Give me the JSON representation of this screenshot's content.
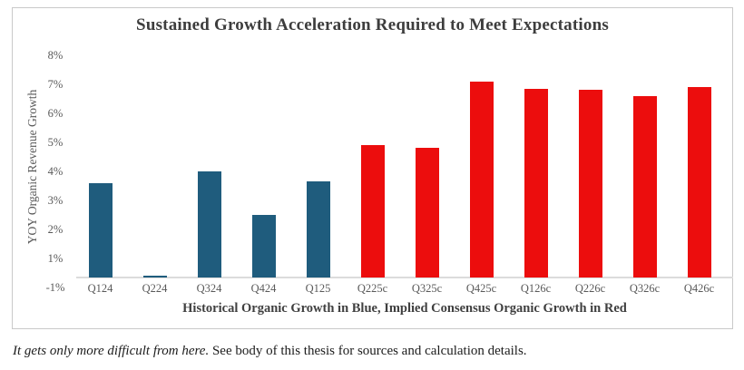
{
  "chart_data": {
    "type": "bar",
    "title": "Sustained Growth Acceleration Required to Meet Expectations",
    "ylabel": "YOY Organic Revenue Growth",
    "xlabel": "Historical Organic Growth in Blue, Implied Consensus Organic Growth in Red",
    "categories": [
      "Q124",
      "Q224",
      "Q324",
      "Q424",
      "Q125",
      "Q225c",
      "Q325c",
      "Q425c",
      "Q126c",
      "Q226c",
      "Q326c",
      "Q426c"
    ],
    "values": [
      3.6,
      0.1,
      4.0,
      2.5,
      3.65,
      4.9,
      4.8,
      7.1,
      6.85,
      6.8,
      6.6,
      6.9
    ],
    "bar_series": [
      "historical",
      "historical",
      "historical",
      "historical",
      "historical",
      "consensus",
      "consensus",
      "consensus",
      "consensus",
      "consensus",
      "consensus",
      "consensus"
    ],
    "series": [
      {
        "name": "Historical Organic Growth",
        "key": "historical",
        "color": "#1f5c7d"
      },
      {
        "name": "Implied Consensus Organic Growth",
        "key": "consensus",
        "color": "#ec0d0d"
      }
    ],
    "series_colors": {
      "historical": "#1f5c7d",
      "consensus": "#ec0d0d"
    },
    "y_tick_labels": [
      "8%",
      "7%",
      "6%",
      "5%",
      "4%",
      "3%",
      "2%",
      "1%",
      "-1%"
    ],
    "ylim": [
      -1,
      8
    ],
    "grid": false,
    "legend_position": "none"
  },
  "footnote": {
    "emphasis": "It gets only more difficult from here.",
    "rest": " See body of this thesis for sources and calculation details."
  }
}
